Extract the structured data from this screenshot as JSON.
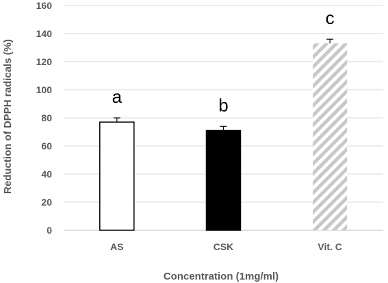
{
  "chart_data": {
    "type": "bar",
    "xlabel": "Concentration (1mg/ml)",
    "ylabel": "Reduction of DPPH radicals (%)",
    "ylim": [
      0,
      160
    ],
    "yticks": [
      0,
      20,
      40,
      60,
      80,
      100,
      120,
      140,
      160
    ],
    "grid": true,
    "categories": [
      "AS",
      "CSK",
      "Vit. C"
    ],
    "values": [
      77,
      71,
      133
    ],
    "errors": [
      3,
      3,
      3
    ],
    "significance_labels": [
      "a",
      "b",
      "c"
    ],
    "bar_styles": [
      "white-fill-black-outline",
      "black-fill",
      "gray-diagonal-hatch"
    ],
    "colors": {
      "outline": "#000000",
      "solid": "#000000",
      "hatch": "#c8c8c8",
      "grid": "#d9d9d9",
      "text": "#595959"
    }
  }
}
